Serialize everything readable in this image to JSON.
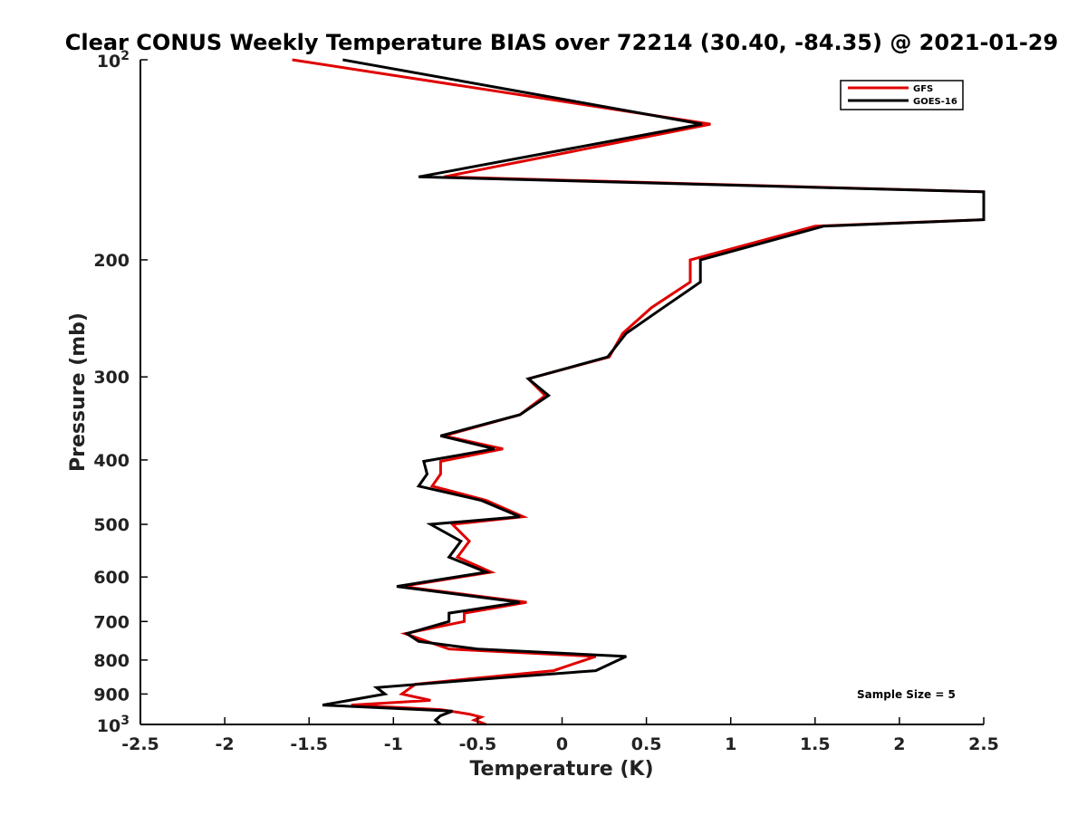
{
  "chart_data": {
    "type": "line",
    "title": "Clear CONUS Weekly Temperature BIAS over 72214 (30.40, -84.35) @ 2021-01-29",
    "xlabel": "Temperature (K)",
    "ylabel": "Pressure (mb)",
    "xlim": [
      -2.5,
      2.5
    ],
    "ylim": [
      100,
      1000
    ],
    "y_scale": "log",
    "y_reversed": true,
    "x_ticks": [
      -2.5,
      -2,
      -1.5,
      -1,
      -0.5,
      0,
      0.5,
      1,
      1.5,
      2,
      2.5
    ],
    "x_tick_labels": [
      "-2.5",
      "-2",
      "-1.5",
      "-1",
      "-0.5",
      "0",
      "0.5",
      "1",
      "1.5",
      "2",
      "2.5"
    ],
    "y_ticks": [
      200,
      300,
      400,
      500,
      600,
      700,
      800,
      900
    ],
    "y_tick_labels": [
      "200",
      "300",
      "400",
      "500",
      "600",
      "700",
      "800",
      "900"
    ],
    "y_end_labels": [
      {
        "value": 100,
        "base": "10",
        "exp": "2"
      },
      {
        "value": 1000,
        "base": "10",
        "exp": "3"
      }
    ],
    "grid": false,
    "legend_position": "top-right",
    "series": [
      {
        "name": "GFS",
        "color": "#e00000",
        "points": [
          [
            -1.6,
            100
          ],
          [
            0.88,
            125
          ],
          [
            -0.7,
            150
          ],
          [
            2.5,
            158
          ],
          [
            2.5,
            174
          ],
          [
            1.5,
            178
          ],
          [
            0.76,
            200
          ],
          [
            0.76,
            216
          ],
          [
            0.53,
            236
          ],
          [
            0.36,
            258
          ],
          [
            0.28,
            280
          ],
          [
            -0.2,
            302
          ],
          [
            -0.1,
            320
          ],
          [
            -0.25,
            342
          ],
          [
            -0.7,
            368
          ],
          [
            -0.35,
            385
          ],
          [
            -0.72,
            402
          ],
          [
            -0.72,
            420
          ],
          [
            -0.77,
            438
          ],
          [
            -0.45,
            460
          ],
          [
            -0.23,
            487
          ],
          [
            -0.65,
            500
          ],
          [
            -0.55,
            530
          ],
          [
            -0.62,
            560
          ],
          [
            -0.42,
            590
          ],
          [
            -0.95,
            620
          ],
          [
            -0.21,
            655
          ],
          [
            -0.58,
            680
          ],
          [
            -0.58,
            700
          ],
          [
            -0.93,
            730
          ],
          [
            -0.8,
            750
          ],
          [
            -0.67,
            770
          ],
          [
            0.2,
            790
          ],
          [
            -0.05,
            830
          ],
          [
            -0.47,
            850
          ],
          [
            -0.87,
            870
          ],
          [
            -0.95,
            900
          ],
          [
            -0.78,
            920
          ],
          [
            -1.25,
            935
          ],
          [
            -0.72,
            950
          ],
          [
            -0.55,
            965
          ],
          [
            -0.48,
            975
          ],
          [
            -0.52,
            985
          ],
          [
            -0.45,
            1000
          ]
        ]
      },
      {
        "name": "GOES-16",
        "color": "#000000",
        "points": [
          [
            -1.3,
            100
          ],
          [
            0.83,
            125
          ],
          [
            -0.85,
            150
          ],
          [
            2.5,
            158
          ],
          [
            2.5,
            174
          ],
          [
            1.55,
            178
          ],
          [
            0.82,
            200
          ],
          [
            0.82,
            216
          ],
          [
            0.6,
            236
          ],
          [
            0.38,
            258
          ],
          [
            0.27,
            280
          ],
          [
            -0.2,
            302
          ],
          [
            -0.08,
            320
          ],
          [
            -0.25,
            342
          ],
          [
            -0.72,
            368
          ],
          [
            -0.4,
            385
          ],
          [
            -0.82,
            402
          ],
          [
            -0.8,
            420
          ],
          [
            -0.85,
            438
          ],
          [
            -0.48,
            460
          ],
          [
            -0.25,
            487
          ],
          [
            -0.78,
            500
          ],
          [
            -0.6,
            530
          ],
          [
            -0.67,
            560
          ],
          [
            -0.45,
            590
          ],
          [
            -0.98,
            620
          ],
          [
            -0.25,
            655
          ],
          [
            -0.67,
            680
          ],
          [
            -0.67,
            700
          ],
          [
            -0.92,
            730
          ],
          [
            -0.85,
            750
          ],
          [
            -0.5,
            770
          ],
          [
            0.38,
            790
          ],
          [
            0.2,
            830
          ],
          [
            -0.35,
            850
          ],
          [
            -1.1,
            880
          ],
          [
            -1.05,
            900
          ],
          [
            -1.42,
            935
          ],
          [
            -0.65,
            955
          ],
          [
            -0.72,
            970
          ],
          [
            -0.75,
            985
          ],
          [
            -0.72,
            1000
          ]
        ]
      }
    ],
    "annotation": "Sample Size = 5"
  }
}
